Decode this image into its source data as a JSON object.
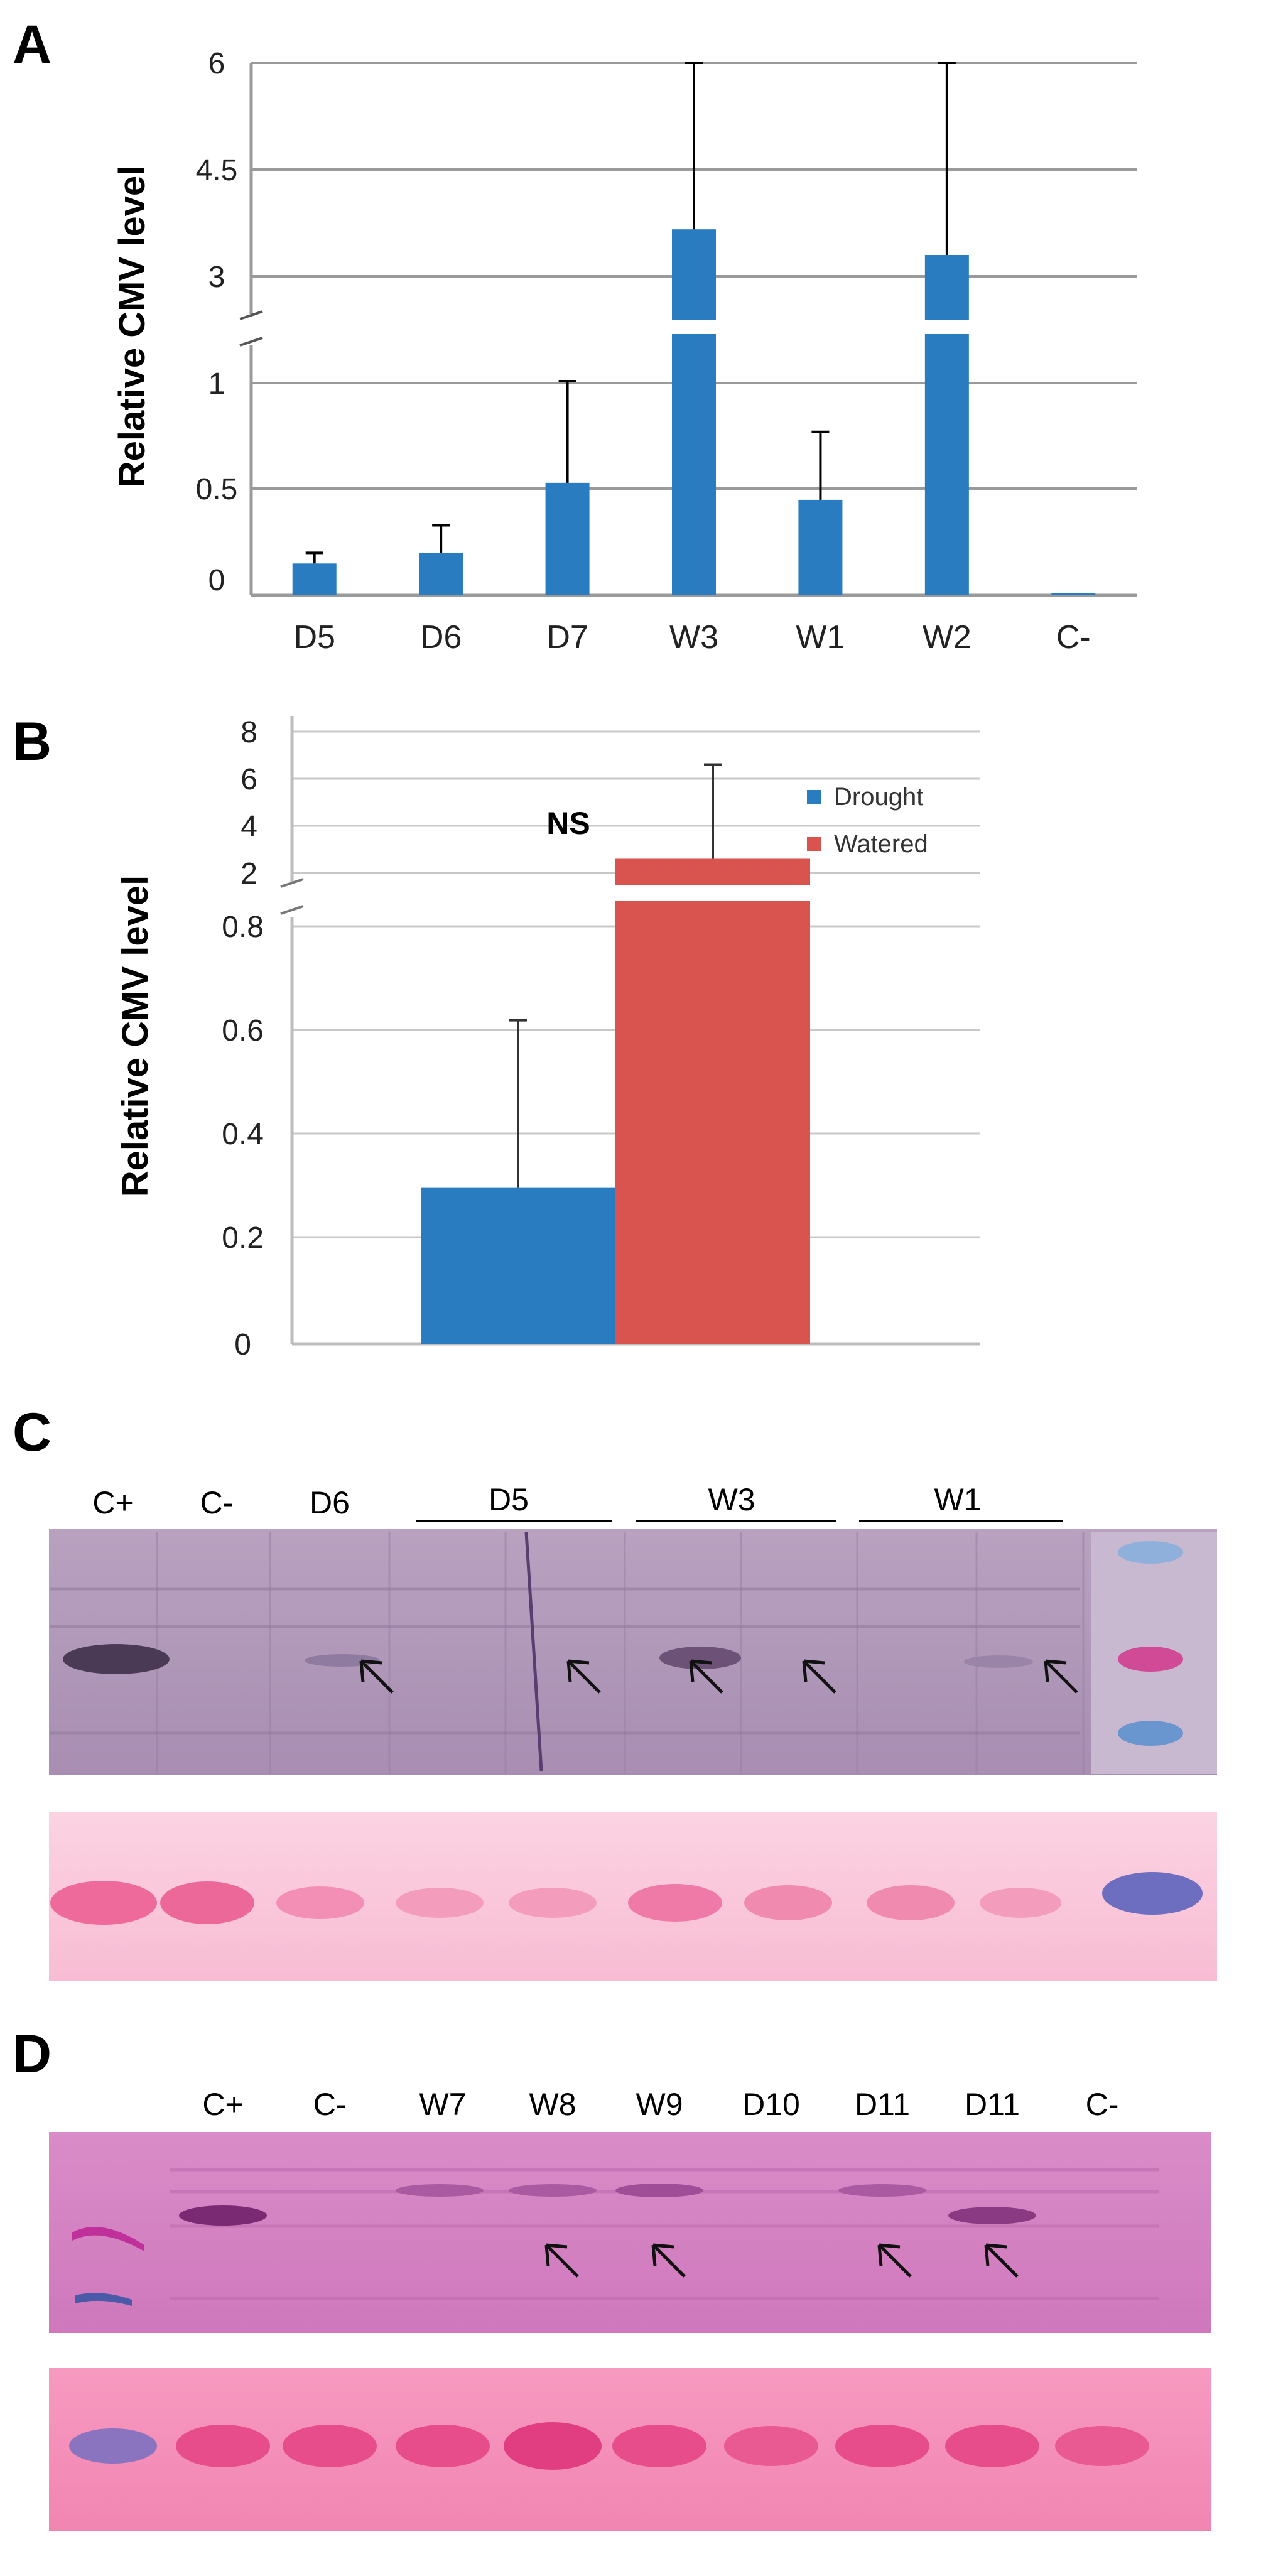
{
  "chart_data": [
    {
      "panel": "A",
      "type": "bar",
      "ylabel": "Relative CMV level",
      "categories": [
        "D5",
        "D6",
        "D7",
        "W3",
        "W1",
        "W2",
        "C-"
      ],
      "values": [
        0.15,
        0.2,
        0.53,
        3.4,
        0.45,
        3.0,
        0.01
      ],
      "errors": [
        0.05,
        0.13,
        0.5,
        2.9,
        0.32,
        3.0,
        0.0
      ],
      "yticks": [
        "0",
        "0.5",
        "1",
        "3",
        "4.5",
        "6"
      ],
      "axis_break": true,
      "color": "#2a7cc0"
    },
    {
      "panel": "B",
      "type": "bar",
      "ylabel": "Relative CMV level",
      "series": [
        {
          "name": "Drought",
          "values": [
            0.3
          ],
          "error": 0.32,
          "color": "#2a7cc0"
        },
        {
          "name": "Watered",
          "values": [
            2.6
          ],
          "error": 4.0,
          "color": "#d9534f"
        }
      ],
      "yticks": [
        "0",
        "0.2",
        "0.4",
        "0.6",
        "0.8",
        "2",
        "4",
        "6",
        "8"
      ],
      "annotation": "NS",
      "axis_break": true
    }
  ],
  "blots": {
    "C": {
      "panel": "C",
      "lanes": [
        "C+",
        "C-",
        "D6"
      ],
      "groups": [
        "D5",
        "W3",
        "W1"
      ]
    },
    "D": {
      "panel": "D",
      "lanes": [
        "C+",
        "C-",
        "W7",
        "W8",
        "W9",
        "D10",
        "D11",
        "D11",
        "C-"
      ]
    }
  },
  "colors": {
    "bar_blue": "#2a7cc0",
    "bar_red": "#d9534f",
    "blot_purple": "#a98fb3",
    "ponceau_pink": "#f4a9c4",
    "blot_D": "#d17ec0"
  }
}
